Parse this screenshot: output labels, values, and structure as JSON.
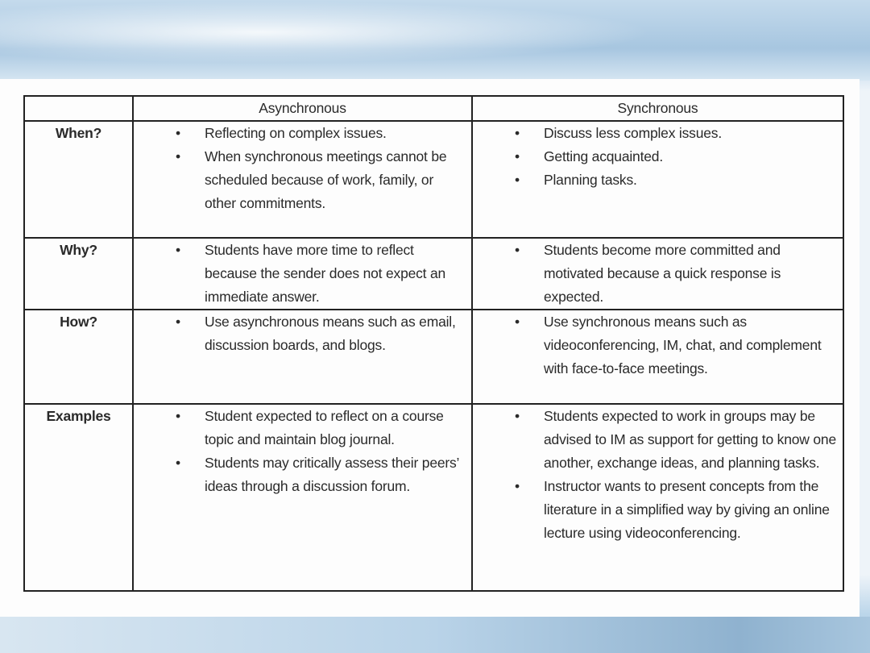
{
  "table": {
    "headers": [
      "",
      "Asynchronous",
      "Synchronous"
    ],
    "rows": [
      {
        "label": "When?",
        "asynchronous": [
          "Reflecting on complex issues.",
          "When synchronous meetings cannot be scheduled because of work, family, or other commitments."
        ],
        "synchronous": [
          "Discuss less complex issues.",
          "Getting acquainted.",
          "Planning tasks."
        ]
      },
      {
        "label": "Why?",
        "asynchronous": [
          "Students have more time to reflect because the sender does not expect an immediate answer."
        ],
        "synchronous": [
          "Students become more committed and motivated because a quick response is expected."
        ]
      },
      {
        "label": "How?",
        "asynchronous": [
          "Use asynchronous means such as email, discussion boards, and blogs."
        ],
        "synchronous": [
          "Use synchronous means such as videoconferencing, IM, chat, and complement with face-to-face meetings."
        ]
      },
      {
        "label": "Examples",
        "asynchronous": [
          "Student expected to reflect on a course topic and maintain blog journal.",
          "Students may critically assess their peers’ ideas through a discussion forum."
        ],
        "synchronous": [
          "Students expected to work in groups may be advised to IM as support for getting to know one another, exchange ideas, and planning tasks.",
          "Instructor wants to present concepts from the literature in a simplified way by giving an online lecture using videoconferencing."
        ]
      }
    ]
  }
}
